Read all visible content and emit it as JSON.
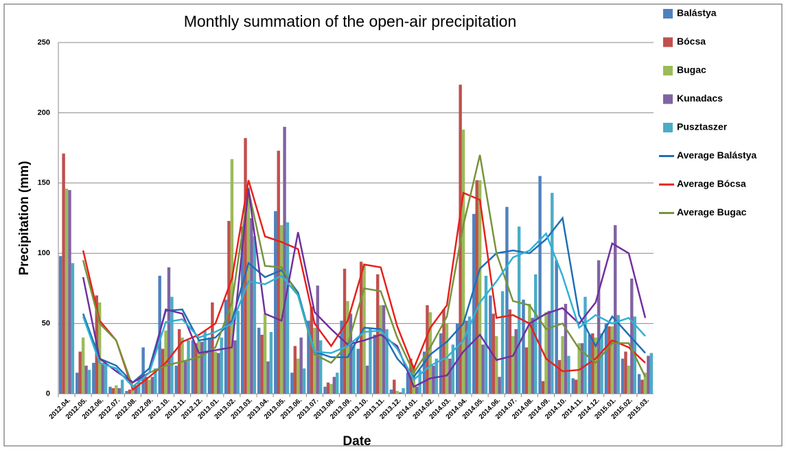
{
  "chart_data": {
    "type": "bar-line",
    "title": "Monthly summation of the open-air precipitation",
    "x_label": "Date",
    "y_label": "Precipitation (mm)",
    "categories": [
      "2012.04.",
      "2012.05.",
      "2012.06.",
      "2012.07.",
      "2012.08.",
      "2012.09.",
      "2012.10.",
      "2012.11.",
      "2012.12.",
      "2013.01.",
      "2013.02.",
      "2013.03.",
      "2013.04.",
      "2013.05.",
      "2013.06.",
      "2013.07.",
      "2013.08.",
      "2013.09.",
      "2013.10.",
      "2013.11.",
      "2013.12.",
      "2014.01.",
      "2014.02.",
      "2014.03.",
      "2014.04.",
      "2014.05.",
      "2014.06.",
      "2014.07.",
      "2014.08.",
      "2014.09.",
      "2014.10.",
      "2014.11.",
      "2014.12.",
      "2015.01.",
      "2015.02.",
      "2015.03."
    ],
    "ylim": [
      0,
      250
    ],
    "yticks": [
      0,
      50,
      100,
      150,
      200,
      250
    ],
    "grid": true,
    "series": [
      {
        "name": "Balástya",
        "kind": "bar",
        "color": "#4f81bd",
        "values": [
          98,
          15,
          22,
          5,
          2,
          33,
          84,
          20,
          38,
          40,
          67,
          119,
          47,
          130,
          15,
          52,
          5,
          52,
          32,
          42,
          3,
          15,
          30,
          43,
          50,
          128,
          70,
          133,
          67,
          155,
          95,
          11,
          42,
          50,
          25,
          14
        ]
      },
      {
        "name": "Bócsa",
        "kind": "bar",
        "color": "#c0504d",
        "values": [
          171,
          30,
          70,
          4,
          3,
          12,
          32,
          46,
          36,
          65,
          123,
          182,
          42,
          173,
          34,
          62,
          8,
          89,
          94,
          85,
          10,
          25,
          63,
          60,
          220,
          152,
          57,
          60,
          33,
          9,
          24,
          10,
          43,
          48,
          30,
          10
        ]
      },
      {
        "name": "Bugac",
        "kind": "bar",
        "color": "#9bbb59",
        "values": [
          146,
          40,
          65,
          6,
          5,
          10,
          45,
          40,
          38,
          30,
          167,
          147,
          57,
          120,
          25,
          47,
          7,
          66,
          92,
          63,
          2,
          20,
          58,
          50,
          188,
          152,
          41,
          41,
          64,
          58,
          41,
          36,
          40,
          48,
          20,
          15
        ]
      },
      {
        "name": "Kunadacs",
        "kind": "bar",
        "color": "#8064a2",
        "values": [
          145,
          20,
          22,
          4,
          6,
          12,
          90,
          23,
          37,
          29,
          38,
          125,
          23,
          190,
          40,
          77,
          12,
          57,
          20,
          63,
          1,
          5,
          20,
          25,
          52,
          35,
          12,
          46,
          54,
          59,
          64,
          36,
          95,
          120,
          82,
          27
        ]
      },
      {
        "name": "Pusztaszer",
        "kind": "bar",
        "color": "#4bacc6",
        "values": [
          93,
          17,
          20,
          10,
          12,
          18,
          69,
          38,
          45,
          40,
          59,
          112,
          44,
          122,
          18,
          38,
          15,
          35,
          47,
          46,
          4,
          17,
          25,
          35,
          55,
          84,
          73,
          119,
          85,
          143,
          27,
          69,
          43,
          56,
          55,
          29
        ]
      },
      {
        "name": "Average Balástya",
        "kind": "line",
        "color": "#1f6fb5",
        "values": [
          null,
          57,
          25,
          20,
          8,
          18,
          59,
          60,
          38,
          40,
          52,
          93,
          83,
          88,
          72,
          30,
          26,
          26,
          47,
          46,
          25,
          12,
          28,
          37,
          50,
          89,
          100,
          102,
          100,
          110,
          125,
          56,
          34,
          55,
          42,
          29
        ]
      },
      {
        "name": "Average Bócsa",
        "kind": "line",
        "color": "#e8201c",
        "values": [
          null,
          102,
          52,
          38,
          3,
          12,
          22,
          37,
          42,
          50,
          82,
          152,
          112,
          108,
          103,
          50,
          34,
          52,
          92,
          90,
          48,
          18,
          47,
          63,
          143,
          138,
          54,
          56,
          50,
          25,
          16,
          17,
          25,
          38,
          33,
          22
        ]
      },
      {
        "name": "Average Bugac",
        "kind": "line",
        "color": "#77933c",
        "values": [
          null,
          95,
          50,
          38,
          5,
          15,
          20,
          23,
          26,
          33,
          65,
          145,
          91,
          90,
          70,
          28,
          22,
          35,
          75,
          73,
          40,
          15,
          33,
          55,
          120,
          170,
          100,
          66,
          63,
          46,
          50,
          32,
          22,
          36,
          36,
          12
        ]
      },
      {
        "kind": "line",
        "color": "#7030a0",
        "values": [
          null,
          83,
          25,
          16,
          8,
          15,
          60,
          57,
          29,
          31,
          33,
          146,
          57,
          52,
          115,
          58,
          46,
          35,
          38,
          42,
          34,
          5,
          11,
          13,
          30,
          42,
          24,
          27,
          50,
          57,
          61,
          50,
          65,
          107,
          100,
          54
        ]
      },
      {
        "kind": "line",
        "color": "#31b0d5",
        "values": [
          null,
          55,
          22,
          18,
          5,
          15,
          51,
          53,
          40,
          44,
          50,
          80,
          78,
          84,
          70,
          30,
          29,
          34,
          44,
          45,
          32,
          10,
          20,
          26,
          38,
          65,
          80,
          97,
          102,
          114,
          84,
          47,
          56,
          50,
          54,
          41
        ]
      }
    ]
  }
}
